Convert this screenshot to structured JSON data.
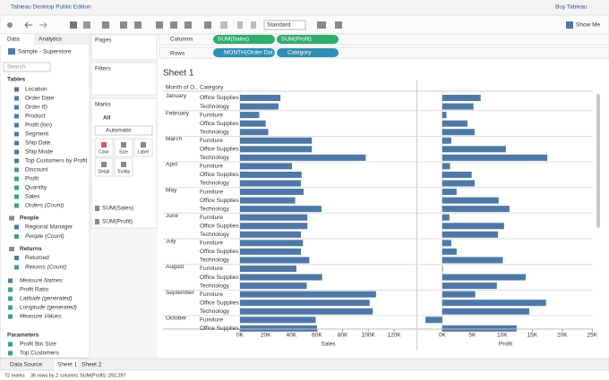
{
  "app": {
    "title": "Tableau Desktop Public Edition",
    "buy": "Buy Tableau",
    "fit": "Standard",
    "show_me": "Show Me"
  },
  "data_pane": {
    "tabs": [
      "Data",
      "Analytics"
    ],
    "source": "Sample - Superstore",
    "search": "Search",
    "tables_title": "Tables",
    "tables": [
      {
        "text": "Location",
        "kind": "dim"
      },
      {
        "text": "Order Date",
        "kind": "dim"
      },
      {
        "text": "Order ID",
        "kind": "dim"
      },
      {
        "text": "Product",
        "kind": "dim"
      },
      {
        "text": "Profit (bin)",
        "kind": "dim"
      },
      {
        "text": "Segment",
        "kind": "dim"
      },
      {
        "text": "Ship Date",
        "kind": "dim"
      },
      {
        "text": "Ship Mode",
        "kind": "dim"
      },
      {
        "text": "Top Customers by Profit",
        "kind": "dim"
      },
      {
        "text": "Discount",
        "kind": "meas"
      },
      {
        "text": "Profit",
        "kind": "meas"
      },
      {
        "text": "Quantity",
        "kind": "meas"
      },
      {
        "text": "Sales",
        "kind": "meas"
      },
      {
        "text": "Orders (Count)",
        "kind": "meas",
        "italic": true
      }
    ],
    "groups": [
      {
        "title": "People",
        "items": [
          {
            "text": "Regional Manager",
            "kind": "dim"
          },
          {
            "text": "People (Count)",
            "kind": "meas",
            "italic": true
          }
        ]
      },
      {
        "title": "Returns",
        "items": [
          {
            "text": "Returned",
            "kind": "dim"
          },
          {
            "text": "Returns (Count)",
            "kind": "meas",
            "italic": true
          }
        ]
      }
    ],
    "others": [
      {
        "text": "Measure Names",
        "kind": "dim",
        "italic": true
      },
      {
        "text": "Profit Ratio",
        "kind": "meas"
      },
      {
        "text": "Latitude (generated)",
        "kind": "meas",
        "italic": true
      },
      {
        "text": "Longitude (generated)",
        "kind": "meas",
        "italic": true
      },
      {
        "text": "Measure Values",
        "kind": "meas",
        "italic": true
      }
    ],
    "parameters_title": "Parameters",
    "parameters": [
      "Profit Bin Size",
      "Top Customers"
    ]
  },
  "cards": {
    "pages": "Pages",
    "filters": "Filters",
    "marks": "Marks",
    "all": "All",
    "mark_type": "Automatic",
    "buttons": [
      "Color",
      "Size",
      "Label",
      "Detail",
      "Tooltip"
    ],
    "fields": [
      "SUM(Sales)",
      "SUM(Profit)"
    ]
  },
  "shelves": {
    "columns": "Columns",
    "rows": "Rows",
    "column_pills": [
      "SUM(Sales)",
      "SUM(Profit)"
    ],
    "row_pills": [
      "MONTH(Order Dat..",
      "Category"
    ]
  },
  "chart_data": {
    "type": "bar",
    "title": "Sheet 1",
    "row_headers": [
      "Month of O..",
      "Category"
    ],
    "row_month": [
      "January",
      null,
      "February",
      null,
      null,
      "March",
      null,
      null,
      "April",
      null,
      null,
      "May",
      null,
      null,
      "June",
      null,
      null,
      "July",
      null,
      null,
      "August",
      null,
      null,
      "September",
      null,
      null,
      "October",
      null
    ],
    "categories": [
      "Office Supplies",
      "Technology",
      "Furniture",
      "Office Supplies",
      "Technology",
      "Furniture",
      "Office Supplies",
      "Technology",
      "Furniture",
      "Office Supplies",
      "Technology",
      "Furniture",
      "Office Supplies",
      "Technology",
      "Furniture",
      "Office Supplies",
      "Technology",
      "Furniture",
      "Office Supplies",
      "Technology",
      "Furniture",
      "Office Supplies",
      "Technology",
      "Furniture",
      "Office Supplies",
      "Technology",
      "Furniture",
      "Office Supplies"
    ],
    "series": [
      {
        "name": "Sales",
        "color": "#4e79a7",
        "xlim": [
          0,
          137500
        ],
        "xticks": [
          {
            "value": 0,
            "label": "0K"
          },
          {
            "value": 20000,
            "label": "20K"
          },
          {
            "value": 40000,
            "label": "40K"
          },
          {
            "value": 60000,
            "label": "60K"
          },
          {
            "value": 80000,
            "label": "80K"
          },
          {
            "value": 100000,
            "label": "100K"
          },
          {
            "value": 120000,
            "label": "120K"
          }
        ],
        "values": [
          31500,
          30000,
          15000,
          20000,
          22000,
          56000,
          56000,
          98000,
          40500,
          48000,
          47500,
          49500,
          43000,
          63500,
          52500,
          52500,
          47500,
          49000,
          47500,
          54000,
          44000,
          64000,
          52000,
          106000,
          101000,
          103500,
          59000,
          60000
        ]
      },
      {
        "name": "Profit",
        "color": "#4e79a7",
        "xlim": [
          -4000,
          25100
        ],
        "xticks": [
          {
            "value": 0,
            "label": "0K"
          },
          {
            "value": 5000,
            "label": "5K"
          },
          {
            "value": 10000,
            "label": "10K"
          },
          {
            "value": 15000,
            "label": "15K"
          },
          {
            "value": 20000,
            "label": "20K"
          },
          {
            "value": 25000,
            "label": "25K"
          }
        ],
        "values": [
          6400,
          5200,
          700,
          4200,
          5400,
          1500,
          10600,
          17500,
          1300,
          4900,
          5400,
          2400,
          9400,
          11200,
          1200,
          10300,
          9300,
          1500,
          2400,
          10100,
          100,
          13900,
          9100,
          5500,
          17300,
          14500,
          -2800,
          12400
        ]
      }
    ]
  },
  "tabs": {
    "source": "Data Source",
    "sheets": [
      "Sheet 1",
      "Sheet 2"
    ]
  },
  "status": [
    "72 marks",
    "36 rows by 2 columns",
    "SUM(Profit): 292,297"
  ]
}
